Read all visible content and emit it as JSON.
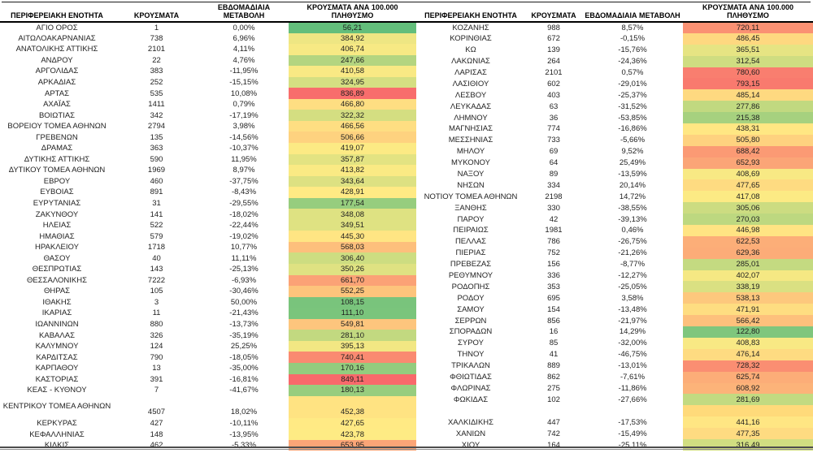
{
  "headers": {
    "region": "ΠΕΡΙΦΕΡΕΙΑΚΗ ΕΝΟΤΗΤΑ",
    "cases": "ΚΡΟΥΣΜΑΤΑ",
    "weekly": "ΕΒΔΟΜΑΔΙΑΙΑ ΜΕΤΑΒΟΛΗ",
    "per100k": "ΚΡΟΥΣΜΑΤΑ ΑΝΑ 100.000 ΠΛΗΘΥΣΜΟ"
  },
  "color_scale": {
    "min": 56.21,
    "mid": 425,
    "max": 849.11,
    "green": "#63BE7B",
    "yellow": "#FFEB84",
    "red": "#F8696B"
  },
  "left_table": {
    "rows": [
      {
        "name": "ΑΓΙΟ ΟΡΟΣ",
        "cases": "1",
        "change": "0,00%",
        "per100k": "56,21"
      },
      {
        "name": "ΑΙΤΩΛΟΑΚΑΡΝΑΝΙΑΣ",
        "cases": "738",
        "change": "6,96%",
        "per100k": "384,92"
      },
      {
        "name": "ΑΝΑΤΟΛΙΚΗΣ ΑΤΤΙΚΗΣ",
        "cases": "2101",
        "change": "4,11%",
        "per100k": "406,74"
      },
      {
        "name": "ΑΝΔΡΟΥ",
        "cases": "22",
        "change": "4,76%",
        "per100k": "247,66"
      },
      {
        "name": "ΑΡΓΟΛΙΔΑΣ",
        "cases": "383",
        "change": "-11,95%",
        "per100k": "410,58"
      },
      {
        "name": "ΑΡΚΑΔΙΑΣ",
        "cases": "252",
        "change": "-15,15%",
        "per100k": "324,95"
      },
      {
        "name": "ΑΡΤΑΣ",
        "cases": "535",
        "change": "10,08%",
        "per100k": "836,89"
      },
      {
        "name": "ΑΧΑΪΑΣ",
        "cases": "1411",
        "change": "0,79%",
        "per100k": "466,80"
      },
      {
        "name": "ΒΟΙΩΤΙΑΣ",
        "cases": "342",
        "change": "-17,19%",
        "per100k": "322,32"
      },
      {
        "name": "ΒΟΡΕΙΟΥ ΤΟΜΕΑ ΑΘΗΝΩΝ",
        "cases": "2794",
        "change": "3,98%",
        "per100k": "466,56"
      },
      {
        "name": "ΓΡΕΒΕΝΩΝ",
        "cases": "135",
        "change": "-14,56%",
        "per100k": "506,66"
      },
      {
        "name": "ΔΡΑΜΑΣ",
        "cases": "363",
        "change": "-10,37%",
        "per100k": "419,07"
      },
      {
        "name": "ΔΥΤΙΚΗΣ ΑΤΤΙΚΗΣ",
        "cases": "590",
        "change": "11,95%",
        "per100k": "357,87"
      },
      {
        "name": "ΔΥΤΙΚΟΥ ΤΟΜΕΑ ΑΘΗΝΩΝ",
        "cases": "1969",
        "change": "8,97%",
        "per100k": "413,82"
      },
      {
        "name": "ΕΒΡΟΥ",
        "cases": "460",
        "change": "-37,75%",
        "per100k": "343,64"
      },
      {
        "name": "ΕΥΒΟΙΑΣ",
        "cases": "891",
        "change": "-8,43%",
        "per100k": "428,91"
      },
      {
        "name": "ΕΥΡΥΤΑΝΙΑΣ",
        "cases": "31",
        "change": "-29,55%",
        "per100k": "177,54"
      },
      {
        "name": "ΖΑΚΥΝΘΟΥ",
        "cases": "141",
        "change": "-18,02%",
        "per100k": "348,08"
      },
      {
        "name": "ΗΛΕΙΑΣ",
        "cases": "522",
        "change": "-22,44%",
        "per100k": "349,51"
      },
      {
        "name": "ΗΜΑΘΙΑΣ",
        "cases": "579",
        "change": "-19,02%",
        "per100k": "445,30"
      },
      {
        "name": "ΗΡΑΚΛΕΙΟΥ",
        "cases": "1718",
        "change": "10,77%",
        "per100k": "568,03"
      },
      {
        "name": "ΘΑΣΟΥ",
        "cases": "40",
        "change": "11,11%",
        "per100k": "306,40"
      },
      {
        "name": "ΘΕΣΠΡΩΤΙΑΣ",
        "cases": "143",
        "change": "-25,13%",
        "per100k": "350,26"
      },
      {
        "name": "ΘΕΣΣΑΛΟΝΙΚΗΣ",
        "cases": "7222",
        "change": "-6,93%",
        "per100k": "661,70"
      },
      {
        "name": "ΘΗΡΑΣ",
        "cases": "105",
        "change": "-30,46%",
        "per100k": "552,25"
      },
      {
        "name": "ΙΘΑΚΗΣ",
        "cases": "3",
        "change": "50,00%",
        "per100k": "108,15"
      },
      {
        "name": "ΙΚΑΡΙΑΣ",
        "cases": "11",
        "change": "-21,43%",
        "per100k": "111,10"
      },
      {
        "name": "ΙΩΑΝΝΙΝΩΝ",
        "cases": "880",
        "change": "-13,73%",
        "per100k": "549,81"
      },
      {
        "name": "ΚΑΒΑΛΑΣ",
        "cases": "326",
        "change": "-35,19%",
        "per100k": "281,10"
      },
      {
        "name": "ΚΑΛΥΜΝΟΥ",
        "cases": "124",
        "change": "25,25%",
        "per100k": "395,13"
      },
      {
        "name": "ΚΑΡΔΙΤΣΑΣ",
        "cases": "790",
        "change": "-18,05%",
        "per100k": "740,41"
      },
      {
        "name": "ΚΑΡΠΑΘΟΥ",
        "cases": "13",
        "change": "-35,00%",
        "per100k": "170,16"
      },
      {
        "name": "ΚΑΣΤΟΡΙΑΣ",
        "cases": "391",
        "change": "-16,81%",
        "per100k": "849,11"
      },
      {
        "name": "ΚΕΑΣ - ΚΥΘΝΟΥ",
        "cases": "7",
        "change": "-41,67%",
        "per100k": "180,13"
      },
      {
        "name": "ΚΕΝΤΡΙΚΟΥ ΤΟΜΕΑ ΑΘΗΝΩΝ",
        "cases": "4507",
        "change": "18,02%",
        "per100k": "452,38",
        "tall": true
      },
      {
        "name": "ΚΕΡΚΥΡΑΣ",
        "cases": "427",
        "change": "-10,11%",
        "per100k": "427,65"
      },
      {
        "name": "ΚΕΦΑΛΛΗΝΙΑΣ",
        "cases": "148",
        "change": "-13,95%",
        "per100k": "423,78"
      },
      {
        "name": "ΚΙΛΚΙΣ",
        "cases": "462",
        "change": "-5,33%",
        "per100k": "653,95"
      }
    ]
  },
  "right_table": {
    "rows": [
      {
        "name": "ΚΟΖΑΝΗΣ",
        "cases": "988",
        "change": "8,57%",
        "per100k": "720,11"
      },
      {
        "name": "ΚΟΡΙΝΘΙΑΣ",
        "cases": "672",
        "change": "-0,15%",
        "per100k": "486,45"
      },
      {
        "name": "ΚΩ",
        "cases": "139",
        "change": "-15,76%",
        "per100k": "365,51"
      },
      {
        "name": "ΛΑΚΩΝΙΑΣ",
        "cases": "264",
        "change": "-24,36%",
        "per100k": "312,54"
      },
      {
        "name": "ΛΑΡΙΣΑΣ",
        "cases": "2101",
        "change": "0,57%",
        "per100k": "780,60"
      },
      {
        "name": "ΛΑΣΙΘΙΟΥ",
        "cases": "602",
        "change": "-29,01%",
        "per100k": "793,15"
      },
      {
        "name": "ΛΕΣΒΟΥ",
        "cases": "403",
        "change": "-25,37%",
        "per100k": "485,14"
      },
      {
        "name": "ΛΕΥΚΑΔΑΣ",
        "cases": "63",
        "change": "-31,52%",
        "per100k": "277,86"
      },
      {
        "name": "ΛΗΜΝΟΥ",
        "cases": "36",
        "change": "-53,85%",
        "per100k": "215,38"
      },
      {
        "name": "ΜΑΓΝΗΣΙΑΣ",
        "cases": "774",
        "change": "-16,86%",
        "per100k": "438,31"
      },
      {
        "name": "ΜΕΣΣΗΝΙΑΣ",
        "cases": "733",
        "change": "-5,66%",
        "per100k": "505,80"
      },
      {
        "name": "ΜΗΛΟΥ",
        "cases": "69",
        "change": "9,52%",
        "per100k": "688,42"
      },
      {
        "name": "ΜΥΚΟΝΟΥ",
        "cases": "64",
        "change": "25,49%",
        "per100k": "652,93"
      },
      {
        "name": "ΝΑΞΟΥ",
        "cases": "89",
        "change": "-13,59%",
        "per100k": "408,69"
      },
      {
        "name": "ΝΗΣΩΝ",
        "cases": "334",
        "change": "20,14%",
        "per100k": "477,65"
      },
      {
        "name": "ΝΟΤΙΟΥ ΤΟΜΕΑ ΑΘΗΝΩΝ",
        "cases": "2198",
        "change": "14,72%",
        "per100k": "417,08"
      },
      {
        "name": "ΞΑΝΘΗΣ",
        "cases": "330",
        "change": "-38,55%",
        "per100k": "305,06"
      },
      {
        "name": "ΠΑΡΟΥ",
        "cases": "42",
        "change": "-39,13%",
        "per100k": "270,03"
      },
      {
        "name": "ΠΕΙΡΑΙΩΣ",
        "cases": "1981",
        "change": "0,46%",
        "per100k": "446,98"
      },
      {
        "name": "ΠΕΛΛΑΣ",
        "cases": "786",
        "change": "-26,75%",
        "per100k": "622,53"
      },
      {
        "name": "ΠΙΕΡΙΑΣ",
        "cases": "752",
        "change": "-21,26%",
        "per100k": "629,36"
      },
      {
        "name": "ΠΡΕΒΕΖΑΣ",
        "cases": "156",
        "change": "-8,77%",
        "per100k": "285,01"
      },
      {
        "name": "ΡΕΘΥΜΝΟΥ",
        "cases": "336",
        "change": "-12,27%",
        "per100k": "402,07"
      },
      {
        "name": "ΡΟΔΟΠΗΣ",
        "cases": "353",
        "change": "-25,05%",
        "per100k": "338,19"
      },
      {
        "name": "ΡΟΔΟΥ",
        "cases": "695",
        "change": "3,58%",
        "per100k": "538,13"
      },
      {
        "name": "ΣΑΜΟΥ",
        "cases": "154",
        "change": "-13,48%",
        "per100k": "471,91"
      },
      {
        "name": "ΣΕΡΡΩΝ",
        "cases": "856",
        "change": "-21,97%",
        "per100k": "566,42"
      },
      {
        "name": "ΣΠΟΡΑΔΩΝ",
        "cases": "16",
        "change": "14,29%",
        "per100k": "122,80"
      },
      {
        "name": "ΣΥΡΟΥ",
        "cases": "85",
        "change": "-32,00%",
        "per100k": "408,83"
      },
      {
        "name": "ΤΗΝΟΥ",
        "cases": "41",
        "change": "-46,75%",
        "per100k": "476,14"
      },
      {
        "name": "ΤΡΙΚΑΛΩΝ",
        "cases": "889",
        "change": "-13,01%",
        "per100k": "728,32"
      },
      {
        "name": "ΦΘΙΩΤΙΔΑΣ",
        "cases": "862",
        "change": "-7,61%",
        "per100k": "625,74"
      },
      {
        "name": "ΦΛΩΡΙΝΑΣ",
        "cases": "275",
        "change": "-11,86%",
        "per100k": "608,92"
      },
      {
        "name": "ΦΩΚΙΔΑΣ",
        "cases": "102",
        "change": "-27,66%",
        "per100k": "281,69"
      },
      {
        "name": "",
        "cases": "",
        "change": "",
        "per100k": "",
        "fill": "#FFDA7A",
        "spacer": true
      },
      {
        "name": "ΧΑΛΚΙΔΙΚΗΣ",
        "cases": "447",
        "change": "-17,53%",
        "per100k": "441,16"
      },
      {
        "name": "ΧΑΝΙΩΝ",
        "cases": "742",
        "change": "-15,49%",
        "per100k": "477,35"
      },
      {
        "name": "ΧΙΟΥ",
        "cases": "164",
        "change": "-25,11%",
        "per100k": "316,49"
      }
    ]
  }
}
